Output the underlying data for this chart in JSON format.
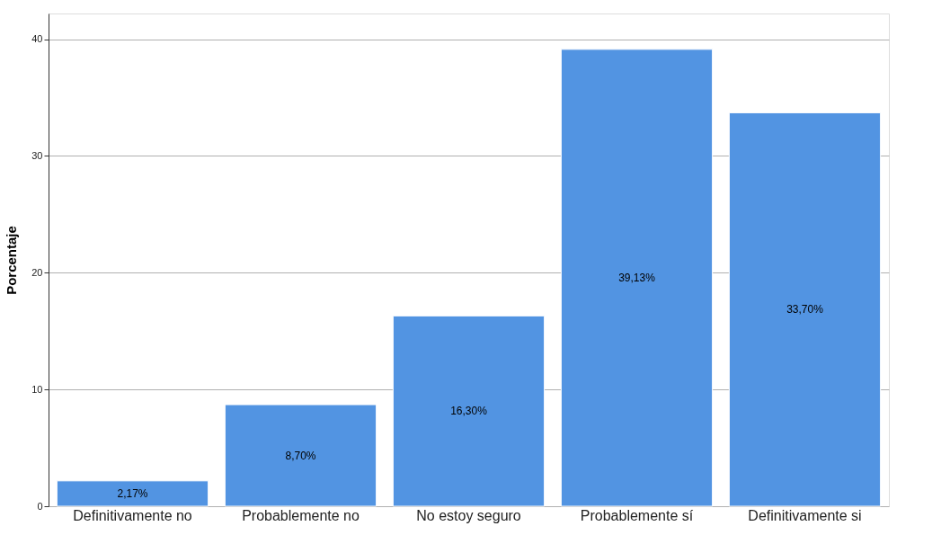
{
  "chart_data": {
    "type": "bar",
    "ylabel": "Porcentaje",
    "categories": [
      "Definitivamente no",
      "Probablemente no",
      "No estoy seguro",
      "Probablemente sí",
      "Definitivamente si"
    ],
    "values": [
      2.17,
      8.7,
      16.3,
      39.13,
      33.7
    ],
    "value_labels": [
      "2,17%",
      "8,70%",
      "16,30%",
      "39,13%",
      "33,70%"
    ],
    "color": "#5294e2",
    "ylim": [
      0,
      42.2
    ],
    "yticks": [
      0,
      10,
      20,
      30,
      40
    ],
    "grid": "y"
  }
}
